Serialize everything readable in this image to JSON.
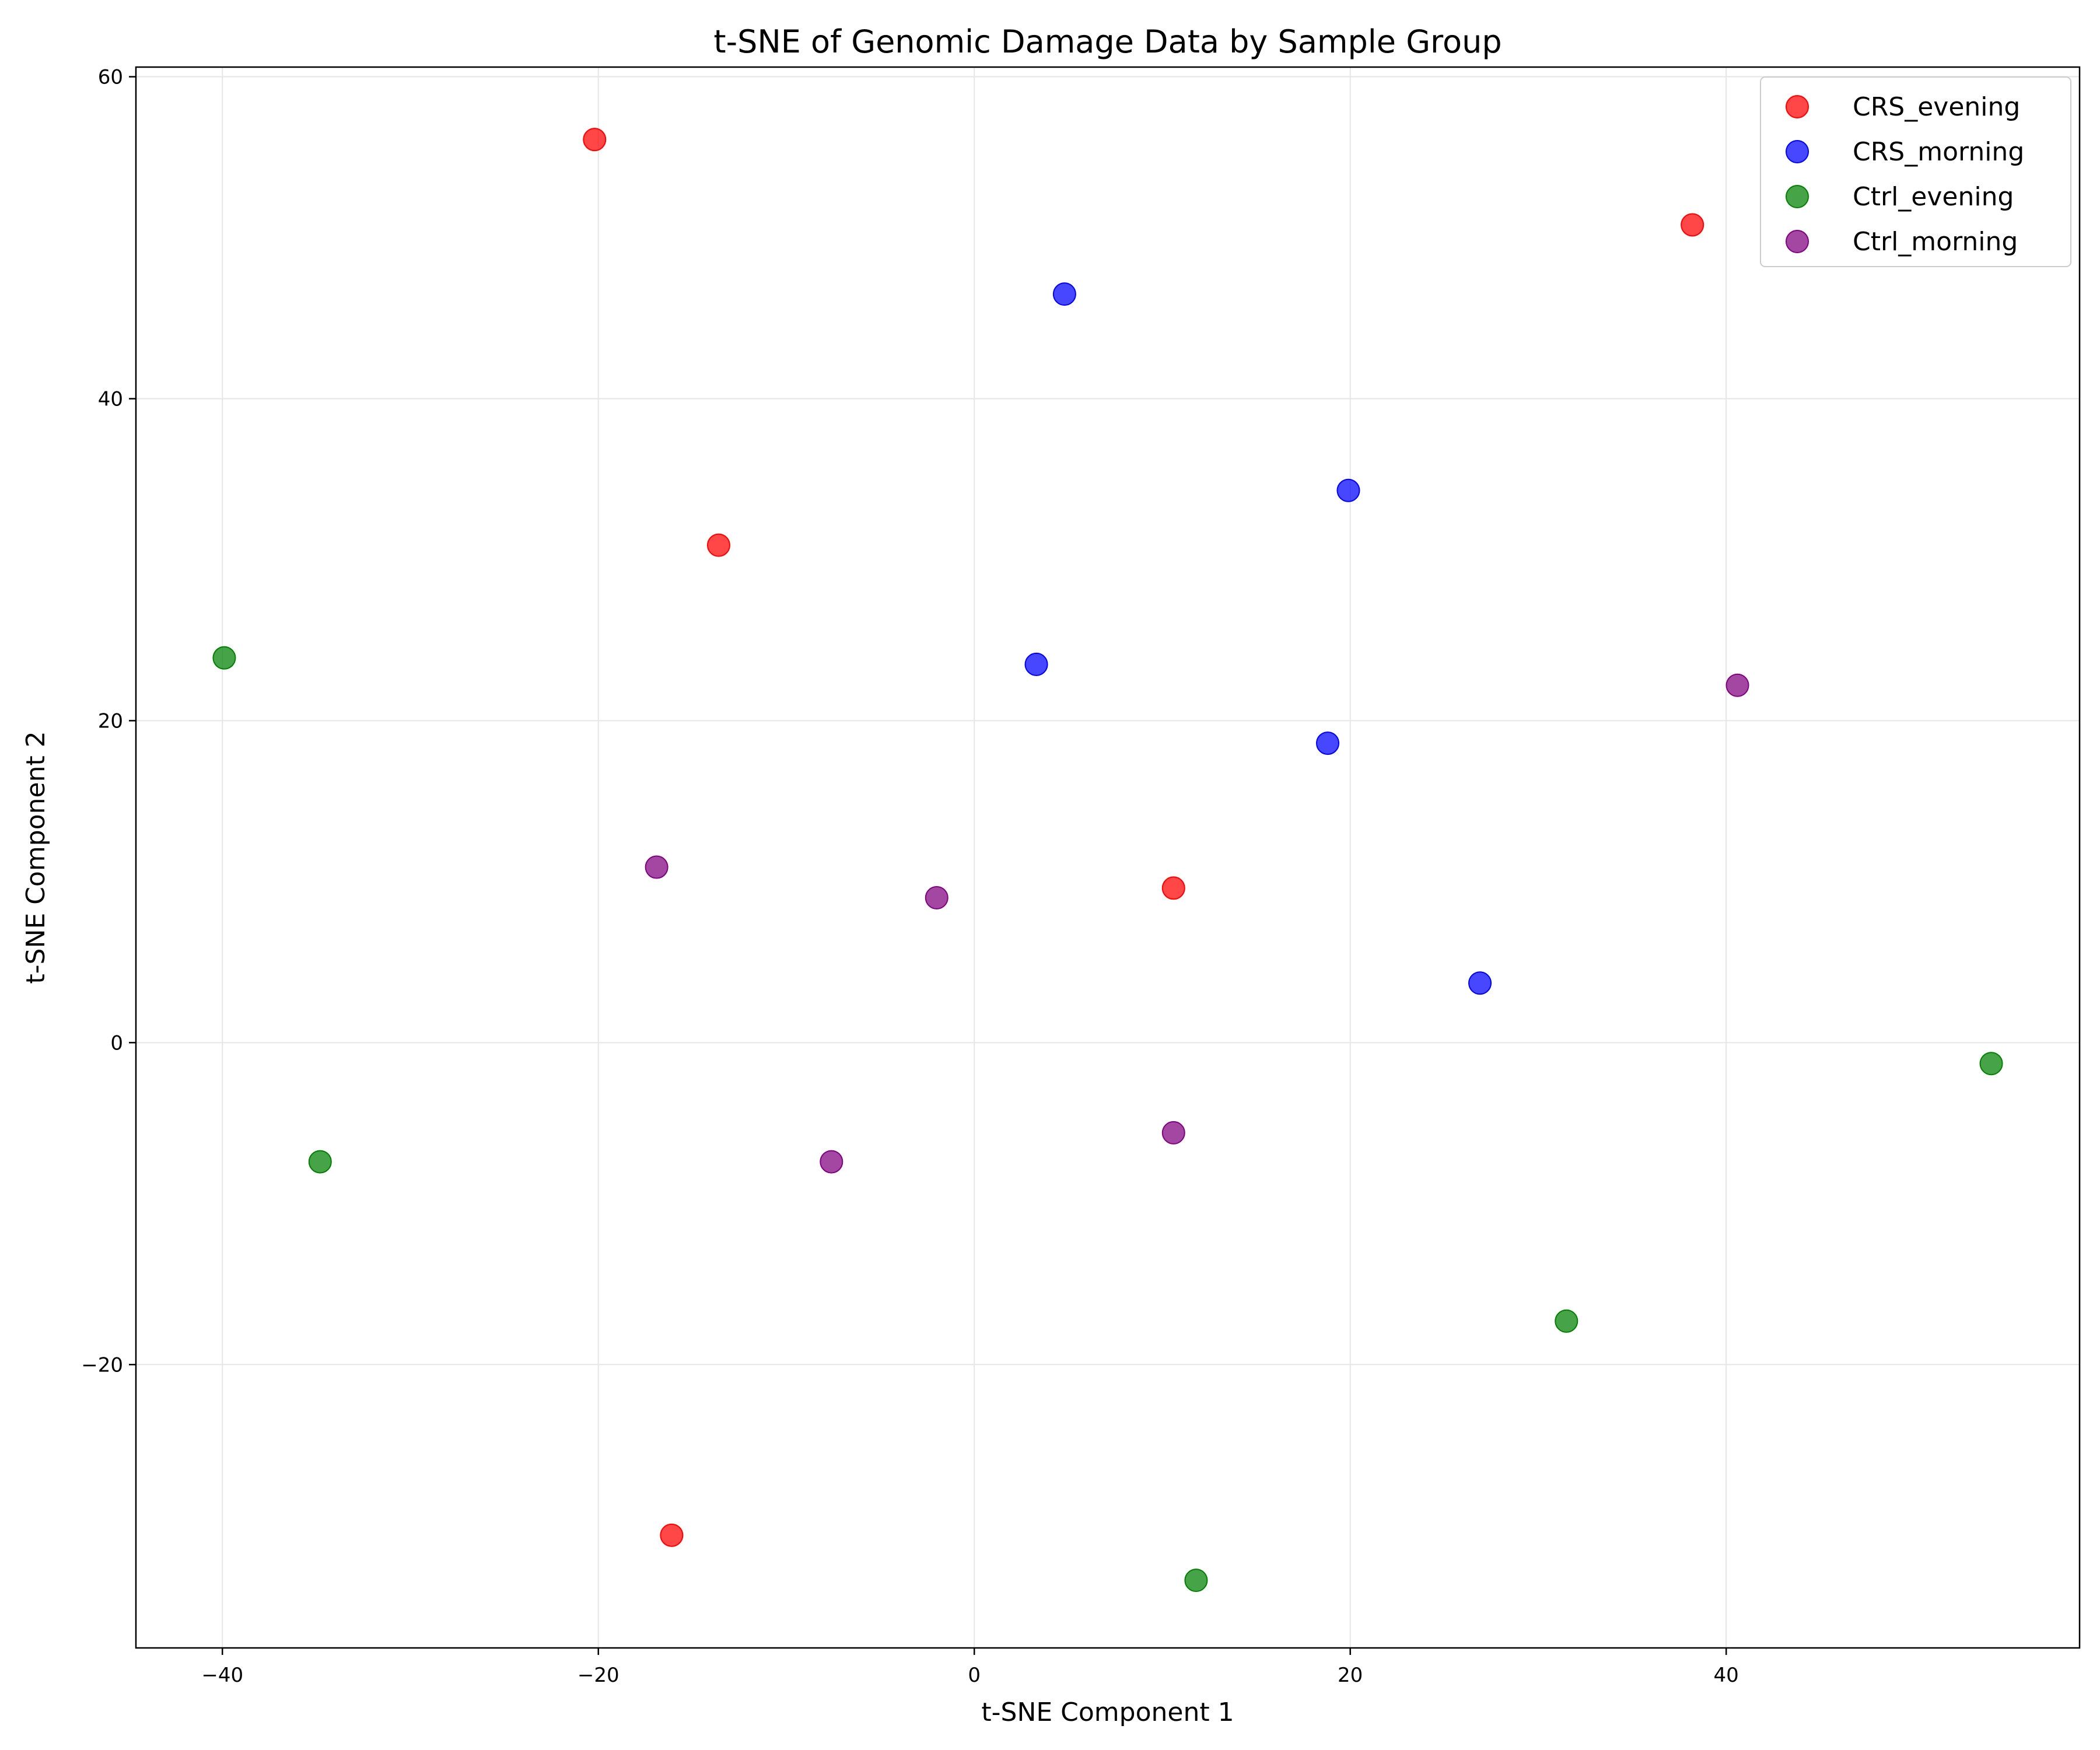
{
  "chart_data": {
    "type": "scatter",
    "title": "t-SNE of Genomic Damage Data by Sample Group",
    "xlabel": "t-SNE Component 1",
    "ylabel": "t-SNE Component 2",
    "xlim": [
      -44.6,
      58.8
    ],
    "ylim": [
      -37.6,
      60.6
    ],
    "xticks": [
      -40,
      -20,
      0,
      20,
      40
    ],
    "yticks": [
      -20,
      0,
      20,
      40,
      60
    ],
    "xtick_labels": [
      "−40",
      "−20",
      "0",
      "20",
      "40"
    ],
    "ytick_labels": [
      "−20",
      "0",
      "20",
      "40",
      "60"
    ],
    "grid": true,
    "legend_position": "top-right",
    "series": [
      {
        "name": "CRS_evening",
        "color": "#ff0000",
        "points": [
          {
            "x": -20.2,
            "y": 56.1
          },
          {
            "x": 38.2,
            "y": 50.8
          },
          {
            "x": -13.6,
            "y": 30.9
          },
          {
            "x": 10.6,
            "y": 9.6
          },
          {
            "x": -16.1,
            "y": -30.6
          }
        ]
      },
      {
        "name": "CRS_morning",
        "color": "#0000ff",
        "points": [
          {
            "x": 4.8,
            "y": 46.5
          },
          {
            "x": 19.9,
            "y": 34.3
          },
          {
            "x": 3.3,
            "y": 23.5
          },
          {
            "x": 18.8,
            "y": 18.6
          },
          {
            "x": 26.9,
            "y": 3.7
          }
        ]
      },
      {
        "name": "Ctrl_evening",
        "color": "#008000",
        "points": [
          {
            "x": -39.9,
            "y": 23.9
          },
          {
            "x": -34.8,
            "y": -7.4
          },
          {
            "x": 54.1,
            "y": -1.3
          },
          {
            "x": 31.5,
            "y": -17.3
          },
          {
            "x": 11.8,
            "y": -33.4
          }
        ]
      },
      {
        "name": "Ctrl_morning",
        "color": "#800080",
        "points": [
          {
            "x": 40.6,
            "y": 22.2
          },
          {
            "x": -16.9,
            "y": 10.9
          },
          {
            "x": -2.0,
            "y": 9.0
          },
          {
            "x": 10.6,
            "y": -5.6
          },
          {
            "x": -7.6,
            "y": -7.4
          }
        ]
      }
    ]
  }
}
